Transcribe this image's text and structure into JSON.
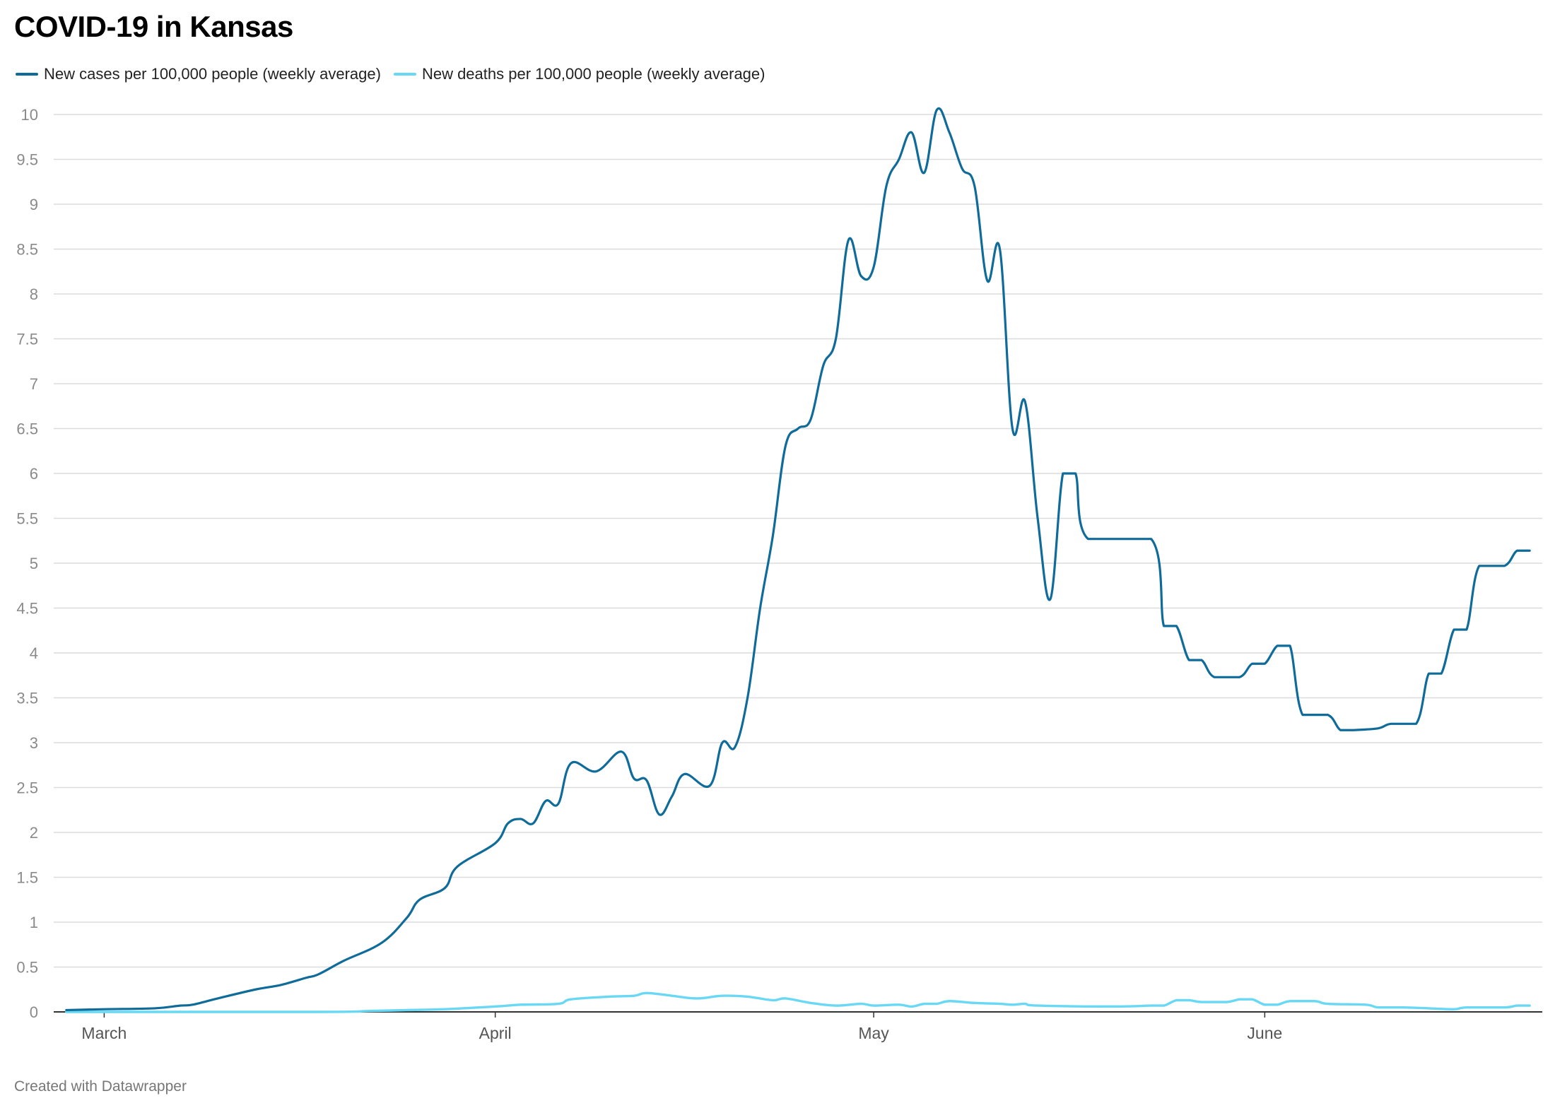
{
  "chart_data": {
    "type": "line",
    "title": "COVID-19 in Kansas",
    "xlabel": "",
    "ylabel": "",
    "ylim": [
      0,
      10
    ],
    "yticks": [
      0,
      0.5,
      1,
      1.5,
      2,
      2.5,
      3,
      3.5,
      4,
      4.5,
      5,
      5.5,
      6,
      6.5,
      7,
      7.5,
      8,
      8.5,
      9,
      9.5,
      10
    ],
    "x_tick_labels": [
      "March",
      "April",
      "May",
      "June"
    ],
    "x_tick_dates": [
      "2020-03-01",
      "2020-04-01",
      "2020-05-01",
      "2020-06-01"
    ],
    "x_range": [
      "2020-02-26",
      "2020-06-23"
    ],
    "grid": true,
    "legend_position": "top-left",
    "series": [
      {
        "name": "New cases per 100,000 people (weekly average)",
        "color": "#0f6b99",
        "points": [
          [
            "2020-02-27",
            0.02
          ],
          [
            "2020-03-01",
            0.03
          ],
          [
            "2020-03-05",
            0.04
          ],
          [
            "2020-03-07",
            0.07
          ],
          [
            "2020-03-08",
            0.08
          ],
          [
            "2020-03-10",
            0.15
          ],
          [
            "2020-03-13",
            0.25
          ],
          [
            "2020-03-15",
            0.3
          ],
          [
            "2020-03-17",
            0.38
          ],
          [
            "2020-03-18",
            0.42
          ],
          [
            "2020-03-20",
            0.57
          ],
          [
            "2020-03-23",
            0.77
          ],
          [
            "2020-03-25",
            1.05
          ],
          [
            "2020-03-26",
            1.25
          ],
          [
            "2020-03-28",
            1.38
          ],
          [
            "2020-03-29",
            1.62
          ],
          [
            "2020-04-01",
            1.88
          ],
          [
            "2020-04-02",
            2.1
          ],
          [
            "2020-04-03",
            2.15
          ],
          [
            "2020-04-04",
            2.1
          ],
          [
            "2020-04-05",
            2.35
          ],
          [
            "2020-04-06",
            2.32
          ],
          [
            "2020-04-07",
            2.77
          ],
          [
            "2020-04-09",
            2.68
          ],
          [
            "2020-04-11",
            2.9
          ],
          [
            "2020-04-12",
            2.6
          ],
          [
            "2020-04-13",
            2.58
          ],
          [
            "2020-04-14",
            2.2
          ],
          [
            "2020-04-15",
            2.4
          ],
          [
            "2020-04-16",
            2.65
          ],
          [
            "2020-04-18",
            2.52
          ],
          [
            "2020-04-19",
            3.0
          ],
          [
            "2020-04-20",
            2.95
          ],
          [
            "2020-04-21",
            3.5
          ],
          [
            "2020-04-22",
            4.5
          ],
          [
            "2020-04-23",
            5.3
          ],
          [
            "2020-04-24",
            6.3
          ],
          [
            "2020-04-25",
            6.5
          ],
          [
            "2020-04-26",
            6.6
          ],
          [
            "2020-04-27",
            7.2
          ],
          [
            "2020-04-28",
            7.5
          ],
          [
            "2020-04-29",
            8.6
          ],
          [
            "2020-04-30",
            8.2
          ],
          [
            "2020-05-01",
            8.3
          ],
          [
            "2020-05-02",
            9.2
          ],
          [
            "2020-05-03",
            9.5
          ],
          [
            "2020-05-04",
            9.8
          ],
          [
            "2020-05-05",
            9.35
          ],
          [
            "2020-05-06",
            10.05
          ],
          [
            "2020-05-07",
            9.8
          ],
          [
            "2020-05-08",
            9.4
          ],
          [
            "2020-05-09",
            9.2
          ],
          [
            "2020-05-10",
            8.15
          ],
          [
            "2020-05-11",
            8.5
          ],
          [
            "2020-05-12",
            6.5
          ],
          [
            "2020-05-13",
            6.8
          ],
          [
            "2020-05-14",
            5.5
          ],
          [
            "2020-05-15",
            4.6
          ],
          [
            "2020-05-16",
            6.0
          ],
          [
            "2020-05-17",
            6.0
          ],
          [
            "2020-05-18",
            5.27
          ],
          [
            "2020-05-23",
            5.27
          ],
          [
            "2020-05-24",
            4.3
          ],
          [
            "2020-05-25",
            4.3
          ],
          [
            "2020-05-26",
            3.92
          ],
          [
            "2020-05-27",
            3.92
          ],
          [
            "2020-05-28",
            3.73
          ],
          [
            "2020-05-30",
            3.73
          ],
          [
            "2020-05-31",
            3.88
          ],
          [
            "2020-06-01",
            3.88
          ],
          [
            "2020-06-02",
            4.08
          ],
          [
            "2020-06-03",
            4.08
          ],
          [
            "2020-06-04",
            3.31
          ],
          [
            "2020-06-06",
            3.31
          ],
          [
            "2020-06-07",
            3.14
          ],
          [
            "2020-06-08",
            3.14
          ],
          [
            "2020-06-10",
            3.16
          ],
          [
            "2020-06-11",
            3.21
          ],
          [
            "2020-06-13",
            3.21
          ],
          [
            "2020-06-14",
            3.77
          ],
          [
            "2020-06-15",
            3.77
          ],
          [
            "2020-06-16",
            4.26
          ],
          [
            "2020-06-17",
            4.26
          ],
          [
            "2020-06-18",
            4.97
          ],
          [
            "2020-06-20",
            4.97
          ],
          [
            "2020-06-21",
            5.14
          ],
          [
            "2020-06-22",
            5.14
          ]
        ]
      },
      {
        "name": "New deaths per 100,000 people (weekly average)",
        "color": "#68d8f5",
        "points": [
          [
            "2020-02-27",
            0.0
          ],
          [
            "2020-03-18",
            0.0
          ],
          [
            "2020-03-22",
            0.01
          ],
          [
            "2020-03-25",
            0.02
          ],
          [
            "2020-03-28",
            0.03
          ],
          [
            "2020-04-01",
            0.06
          ],
          [
            "2020-04-03",
            0.08
          ],
          [
            "2020-04-06",
            0.09
          ],
          [
            "2020-04-07",
            0.14
          ],
          [
            "2020-04-10",
            0.17
          ],
          [
            "2020-04-12",
            0.18
          ],
          [
            "2020-04-13",
            0.21
          ],
          [
            "2020-04-15",
            0.18
          ],
          [
            "2020-04-17",
            0.15
          ],
          [
            "2020-04-19",
            0.18
          ],
          [
            "2020-04-21",
            0.17
          ],
          [
            "2020-04-23",
            0.13
          ],
          [
            "2020-04-24",
            0.15
          ],
          [
            "2020-04-26",
            0.1
          ],
          [
            "2020-04-28",
            0.07
          ],
          [
            "2020-04-30",
            0.09
          ],
          [
            "2020-05-01",
            0.07
          ],
          [
            "2020-05-03",
            0.08
          ],
          [
            "2020-05-04",
            0.06
          ],
          [
            "2020-05-05",
            0.09
          ],
          [
            "2020-05-06",
            0.09
          ],
          [
            "2020-05-07",
            0.12
          ],
          [
            "2020-05-09",
            0.1
          ],
          [
            "2020-05-11",
            0.09
          ],
          [
            "2020-05-12",
            0.08
          ],
          [
            "2020-05-13",
            0.09
          ],
          [
            "2020-05-14",
            0.07
          ],
          [
            "2020-05-20",
            0.06
          ],
          [
            "2020-05-23",
            0.07
          ],
          [
            "2020-05-24",
            0.07
          ],
          [
            "2020-05-25",
            0.13
          ],
          [
            "2020-05-26",
            0.13
          ],
          [
            "2020-05-27",
            0.11
          ],
          [
            "2020-05-29",
            0.11
          ],
          [
            "2020-05-30",
            0.14
          ],
          [
            "2020-05-31",
            0.14
          ],
          [
            "2020-06-01",
            0.08
          ],
          [
            "2020-06-02",
            0.08
          ],
          [
            "2020-06-03",
            0.12
          ],
          [
            "2020-06-05",
            0.12
          ],
          [
            "2020-06-06",
            0.09
          ],
          [
            "2020-06-09",
            0.08
          ],
          [
            "2020-06-10",
            0.05
          ],
          [
            "2020-06-12",
            0.05
          ],
          [
            "2020-06-14",
            0.04
          ],
          [
            "2020-06-16",
            0.03
          ],
          [
            "2020-06-17",
            0.05
          ],
          [
            "2020-06-20",
            0.05
          ],
          [
            "2020-06-21",
            0.07
          ],
          [
            "2020-06-22",
            0.07
          ]
        ]
      }
    ]
  },
  "footer": "Created with Datawrapper"
}
